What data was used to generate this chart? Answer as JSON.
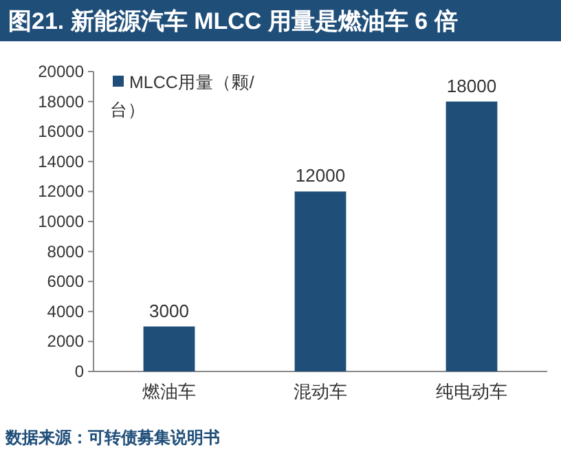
{
  "chart_data": {
    "type": "bar",
    "title": "图21. 新能源汽车 MLCC 用量是燃油车 6 倍",
    "categories": [
      "燃油车",
      "混动车",
      "纯电动车"
    ],
    "series": [
      {
        "name": "MLCC用量（颗/台）",
        "color": "#1f4e79",
        "values": [
          3000,
          12000,
          18000
        ]
      }
    ],
    "ylim": [
      0,
      20000
    ],
    "yticks": [
      0,
      2000,
      4000,
      6000,
      8000,
      10000,
      12000,
      14000,
      16000,
      18000,
      20000
    ],
    "data_labels": true,
    "legend": "top left",
    "annotations": [
      "数据来源：可转债募集说明书"
    ]
  }
}
